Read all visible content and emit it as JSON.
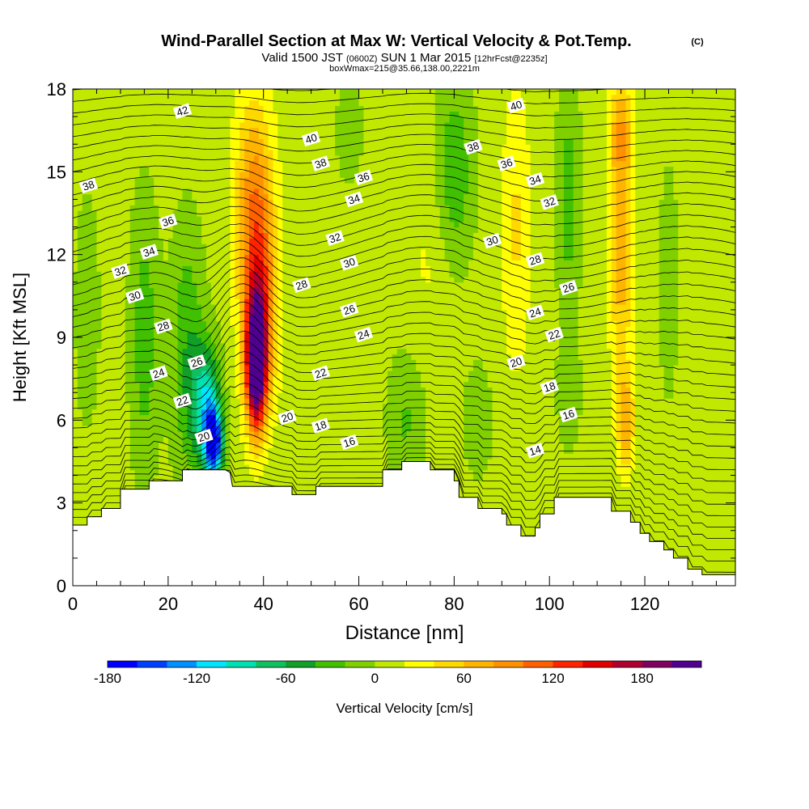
{
  "chart_data": {
    "type": "heatmap",
    "title": "Wind-Parallel Section at Max W: Vertical Velocity & Pot.Temp.",
    "title_mark": "(C)",
    "subtitle_parts": [
      "Valid 1500 JST",
      "(0600Z)",
      "SUN 1 Mar 2015",
      "[12hrFcst@2235z]"
    ],
    "subtitle2": "boxWmax=215@35.66,138.00,2221m",
    "xlabel": "Distance [nm]",
    "ylabel": "Height [Kft MSL]",
    "xlim": [
      0,
      139
    ],
    "ylim": [
      0,
      18
    ],
    "x_ticks": [
      "0",
      "20",
      "40",
      "60",
      "80",
      "100",
      "120"
    ],
    "y_ticks": [
      "0",
      "3",
      "6",
      "9",
      "12",
      "15",
      "18"
    ],
    "colorbar": {
      "label": "Vertical Velocity [cm/s]",
      "min": -180,
      "max": 215,
      "step": 20,
      "ticks": [
        "-180",
        "-120",
        "-60",
        "0",
        "60",
        "120",
        "180"
      ],
      "colors": [
        "#0000ff",
        "#0040ff",
        "#0090ff",
        "#00e4ff",
        "#00e0b0",
        "#10c060",
        "#10a028",
        "#40c000",
        "#80d000",
        "#c0e800",
        "#ffff00",
        "#ffd800",
        "#ffb400",
        "#ff9000",
        "#ff6000",
        "#ff2400",
        "#e00000",
        "#b00030",
        "#800060",
        "#500090"
      ]
    },
    "terrain": [
      [
        0,
        2.2
      ],
      [
        3,
        2.2
      ],
      [
        3,
        2.5
      ],
      [
        6,
        2.5
      ],
      [
        6,
        2.8
      ],
      [
        10,
        2.8
      ],
      [
        10,
        3.5
      ],
      [
        16,
        3.5
      ],
      [
        16,
        3.8
      ],
      [
        23,
        3.8
      ],
      [
        23,
        4.2
      ],
      [
        32,
        4.2
      ],
      [
        33,
        4.1
      ],
      [
        33.5,
        3.6
      ],
      [
        46,
        3.6
      ],
      [
        46,
        3.3
      ],
      [
        51,
        3.3
      ],
      [
        51,
        3.6
      ],
      [
        65,
        3.6
      ],
      [
        65,
        4.2
      ],
      [
        69,
        4.2
      ],
      [
        69,
        4.5
      ],
      [
        75,
        4.5
      ],
      [
        75,
        4.2
      ],
      [
        80,
        4.2
      ],
      [
        80,
        3.8
      ],
      [
        81,
        3.8
      ],
      [
        81,
        3.2
      ],
      [
        85,
        3.2
      ],
      [
        85,
        2.8
      ],
      [
        90,
        2.8
      ],
      [
        90,
        2.6
      ],
      [
        91,
        2.6
      ],
      [
        91,
        2.2
      ],
      [
        94,
        2.2
      ],
      [
        94,
        1.8
      ],
      [
        97,
        1.8
      ],
      [
        97,
        2.1
      ],
      [
        98,
        2.1
      ],
      [
        98,
        2.6
      ],
      [
        101,
        2.6
      ],
      [
        101,
        3.2
      ],
      [
        113,
        3.2
      ],
      [
        113,
        2.7
      ],
      [
        117,
        2.7
      ],
      [
        117,
        2.3
      ],
      [
        119,
        2.3
      ],
      [
        119,
        1.9
      ],
      [
        121,
        1.9
      ],
      [
        121,
        1.6
      ],
      [
        124,
        1.6
      ],
      [
        124,
        1.3
      ],
      [
        126,
        1.3
      ],
      [
        126,
        1.0
      ],
      [
        129,
        1.0
      ],
      [
        129,
        0.6
      ],
      [
        132,
        0.6
      ],
      [
        132,
        0.4
      ],
      [
        139,
        0.4
      ]
    ],
    "w_features": [
      {
        "x": 29.5,
        "z": 5.2,
        "w": -180,
        "sx": 1.8,
        "sz": 1.2
      },
      {
        "x": 28,
        "z": 6.5,
        "w": -100,
        "sx": 3.0,
        "sz": 2.2
      },
      {
        "x": 24,
        "z": 8.5,
        "w": -45,
        "sx": 3.5,
        "sz": 4.5
      },
      {
        "x": 15,
        "z": 9.0,
        "w": -40,
        "sx": 3.0,
        "sz": 5.0
      },
      {
        "x": 3,
        "z": 10.0,
        "w": -25,
        "sx": 2.5,
        "sz": 4.0
      },
      {
        "x": 38.5,
        "z": 8.0,
        "w": 215,
        "sx": 2.0,
        "sz": 2.2
      },
      {
        "x": 39,
        "z": 10.0,
        "w": 120,
        "sx": 3.5,
        "sz": 3.5
      },
      {
        "x": 38,
        "z": 14.5,
        "w": 70,
        "sx": 4.0,
        "sz": 3.5
      },
      {
        "x": 80,
        "z": 15.0,
        "w": -45,
        "sx": 4.0,
        "sz": 3.5
      },
      {
        "x": 70,
        "z": 6.0,
        "w": -30,
        "sx": 4.0,
        "sz": 2.5
      },
      {
        "x": 85,
        "z": 6.0,
        "w": -25,
        "sx": 3.0,
        "sz": 2.0
      },
      {
        "x": 104,
        "z": 14.0,
        "w": -40,
        "sx": 2.5,
        "sz": 4.0
      },
      {
        "x": 104,
        "z": 7.0,
        "w": -25,
        "sx": 2.5,
        "sz": 2.0
      },
      {
        "x": 93,
        "z": 13.0,
        "w": 35,
        "sx": 3.0,
        "sz": 5.0
      },
      {
        "x": 115,
        "z": 12.0,
        "w": 65,
        "sx": 2.5,
        "sz": 4.0
      },
      {
        "x": 116,
        "z": 6.0,
        "w": 70,
        "sx": 1.8,
        "sz": 1.8
      },
      {
        "x": 115,
        "z": 16.5,
        "w": 60,
        "sx": 2.5,
        "sz": 2.0
      },
      {
        "x": 125,
        "z": 11.0,
        "w": -25,
        "sx": 2.0,
        "sz": 4.0
      },
      {
        "x": 58,
        "z": 16.5,
        "w": -20,
        "sx": 3.0,
        "sz": 2.0
      },
      {
        "x": 75,
        "z": 12.0,
        "w": 15,
        "sx": 5.0,
        "sz": 4.0
      }
    ],
    "theta_labels": [
      {
        "text": "42",
        "x": 23,
        "z": 17.2
      },
      {
        "text": "40",
        "x": 50,
        "z": 16.2
      },
      {
        "text": "40",
        "x": 93,
        "z": 17.4
      },
      {
        "text": "38",
        "x": 3.3,
        "z": 14.5
      },
      {
        "text": "38",
        "x": 52,
        "z": 15.3
      },
      {
        "text": "38",
        "x": 84,
        "z": 15.9
      },
      {
        "text": "36",
        "x": 20,
        "z": 13.2
      },
      {
        "text": "36",
        "x": 61,
        "z": 14.8
      },
      {
        "text": "36",
        "x": 91,
        "z": 15.3
      },
      {
        "text": "34",
        "x": 16,
        "z": 12.1
      },
      {
        "text": "34",
        "x": 59,
        "z": 14.0
      },
      {
        "text": "34",
        "x": 97,
        "z": 14.7
      },
      {
        "text": "32",
        "x": 10,
        "z": 11.4
      },
      {
        "text": "32",
        "x": 55,
        "z": 12.6
      },
      {
        "text": "32",
        "x": 100,
        "z": 13.9
      },
      {
        "text": "30",
        "x": 13,
        "z": 10.5
      },
      {
        "text": "30",
        "x": 58,
        "z": 11.7
      },
      {
        "text": "30",
        "x": 88,
        "z": 12.5
      },
      {
        "text": "28",
        "x": 19,
        "z": 9.4
      },
      {
        "text": "28",
        "x": 48,
        "z": 10.9
      },
      {
        "text": "28",
        "x": 97,
        "z": 11.8
      },
      {
        "text": "26",
        "x": 26,
        "z": 8.1
      },
      {
        "text": "26",
        "x": 58,
        "z": 10.0
      },
      {
        "text": "26",
        "x": 104,
        "z": 10.8
      },
      {
        "text": "24",
        "x": 18,
        "z": 7.7
      },
      {
        "text": "24",
        "x": 61,
        "z": 9.1
      },
      {
        "text": "24",
        "x": 97,
        "z": 9.9
      },
      {
        "text": "22",
        "x": 23,
        "z": 6.7
      },
      {
        "text": "22",
        "x": 52,
        "z": 7.7
      },
      {
        "text": "22",
        "x": 101,
        "z": 9.1
      },
      {
        "text": "20",
        "x": 27.5,
        "z": 5.4
      },
      {
        "text": "20",
        "x": 45,
        "z": 6.1
      },
      {
        "text": "20",
        "x": 93,
        "z": 8.1
      },
      {
        "text": "18",
        "x": 52,
        "z": 5.8
      },
      {
        "text": "18",
        "x": 100,
        "z": 7.2
      },
      {
        "text": "16",
        "x": 58,
        "z": 5.2
      },
      {
        "text": "16",
        "x": 104,
        "z": 6.2
      },
      {
        "text": "14",
        "x": 97,
        "z": 4.9
      }
    ]
  }
}
